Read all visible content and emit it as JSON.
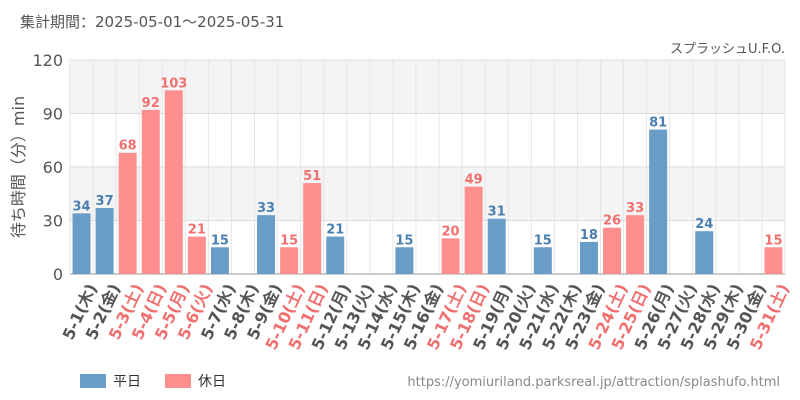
{
  "header": {
    "period": "集計期間：2025-05-01～2025-05-31",
    "attraction": "スプラッシュU.F.O."
  },
  "footer": {
    "source": "https://yomiuriland.parksreal.jp/attraction/splashufo.html"
  },
  "colors": {
    "weekday": "#6a9cc8",
    "holiday": "#ff8f8f",
    "weekday_label": "#4a7fb0",
    "holiday_label": "#f07070",
    "axis_label": "#555555"
  },
  "chart_data": {
    "type": "bar",
    "ylabel": "待ち時間（分）min",
    "ylim": [
      0,
      120
    ],
    "yticks": [
      0,
      30,
      60,
      90,
      120
    ],
    "grid": true,
    "legend_position": "bottom-left",
    "series": [
      {
        "name": "平日",
        "color": "#6a9cc8"
      },
      {
        "name": "休日",
        "color": "#ff8f8f"
      }
    ],
    "categories": [
      {
        "label": "5-1(木)",
        "value": 34,
        "holiday": false
      },
      {
        "label": "5-2(金)",
        "value": 37,
        "holiday": false
      },
      {
        "label": "5-3(土)",
        "value": 68,
        "holiday": true
      },
      {
        "label": "5-4(日)",
        "value": 92,
        "holiday": true
      },
      {
        "label": "5-5(月)",
        "value": 103,
        "holiday": true
      },
      {
        "label": "5-6(火)",
        "value": 21,
        "holiday": true
      },
      {
        "label": "5-7(水)",
        "value": 15,
        "holiday": false
      },
      {
        "label": "5-8(木)",
        "value": null,
        "holiday": false
      },
      {
        "label": "5-9(金)",
        "value": 33,
        "holiday": false
      },
      {
        "label": "5-10(土)",
        "value": 15,
        "holiday": true
      },
      {
        "label": "5-11(日)",
        "value": 51,
        "holiday": true
      },
      {
        "label": "5-12(月)",
        "value": 21,
        "holiday": false
      },
      {
        "label": "5-13(火)",
        "value": null,
        "holiday": false
      },
      {
        "label": "5-14(水)",
        "value": null,
        "holiday": false
      },
      {
        "label": "5-15(木)",
        "value": 15,
        "holiday": false
      },
      {
        "label": "5-16(金)",
        "value": null,
        "holiday": false
      },
      {
        "label": "5-17(土)",
        "value": 20,
        "holiday": true
      },
      {
        "label": "5-18(日)",
        "value": 49,
        "holiday": true
      },
      {
        "label": "5-19(月)",
        "value": 31,
        "holiday": false
      },
      {
        "label": "5-20(火)",
        "value": null,
        "holiday": false
      },
      {
        "label": "5-21(水)",
        "value": 15,
        "holiday": false
      },
      {
        "label": "5-22(木)",
        "value": null,
        "holiday": false
      },
      {
        "label": "5-23(金)",
        "value": 18,
        "holiday": false
      },
      {
        "label": "5-24(土)",
        "value": 26,
        "holiday": true
      },
      {
        "label": "5-25(日)",
        "value": 33,
        "holiday": true
      },
      {
        "label": "5-26(月)",
        "value": 81,
        "holiday": false
      },
      {
        "label": "5-27(火)",
        "value": null,
        "holiday": false
      },
      {
        "label": "5-28(水)",
        "value": 24,
        "holiday": false
      },
      {
        "label": "5-29(木)",
        "value": null,
        "holiday": false
      },
      {
        "label": "5-30(金)",
        "value": null,
        "holiday": false
      },
      {
        "label": "5-31(土)",
        "value": 15,
        "holiday": true
      }
    ]
  }
}
